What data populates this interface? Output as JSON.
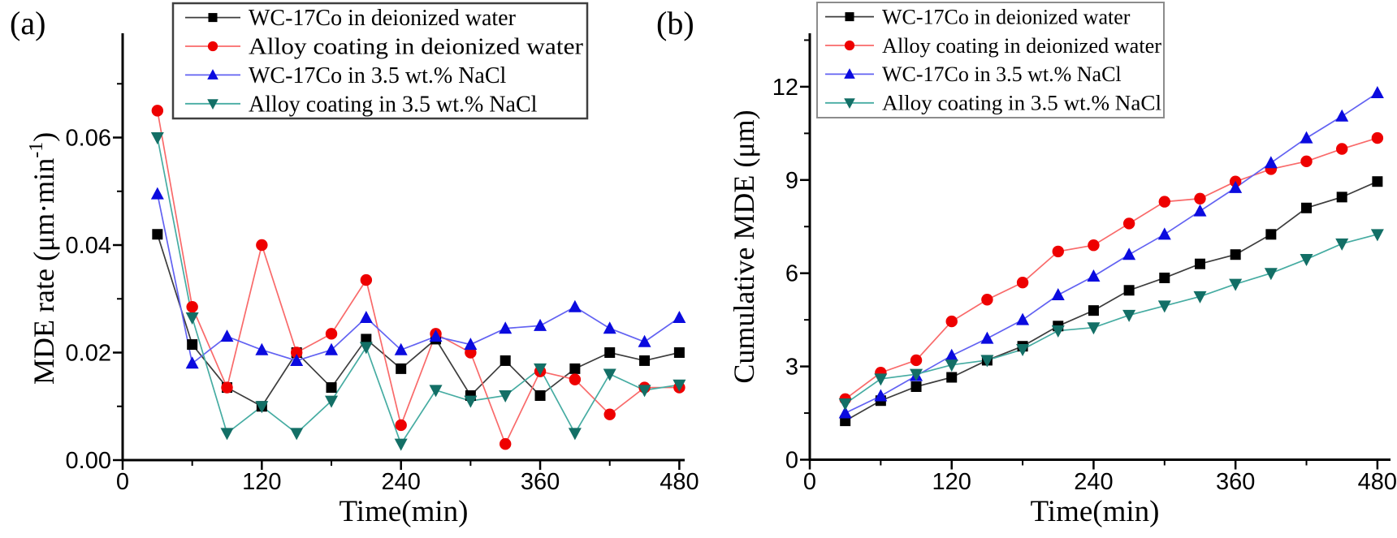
{
  "figure": {
    "background": "#ffffff",
    "axis_color": "#000000",
    "panel_a_label": "(a)",
    "panel_b_label": "(b)",
    "panel_a_xlabel": "Time(min)",
    "panel_b_xlabel": "Time(min)",
    "panel_a_ylabel_parts": {
      "prefix": "MDE rate (μm·min",
      "sup": "-1",
      "suffix": ")"
    },
    "panel_b_ylabel": "Cumulative MDE (μm)"
  },
  "chart_data": [
    {
      "panel": "a",
      "type": "line",
      "title": "",
      "xlabel": "Time(min)",
      "ylabel": "MDE rate (μm·min⁻¹)",
      "grid": false,
      "legend_position": "upper-left-inside",
      "x": [
        30,
        60,
        90,
        120,
        150,
        180,
        210,
        240,
        270,
        300,
        330,
        360,
        390,
        420,
        450,
        480
      ],
      "xlim": [
        0,
        485
      ],
      "ylim": [
        0,
        0.0795
      ],
      "x_major_ticks": [
        0,
        120,
        240,
        360,
        480
      ],
      "x_minor_ticks": [
        60,
        180,
        300,
        420
      ],
      "y_major_ticks": [
        0,
        0.02,
        0.04,
        0.06
      ],
      "y_major_tick_labels": [
        "0.00",
        "0.02",
        "0.04",
        "0.06"
      ],
      "y_minor_ticks": [
        0.01,
        0.03,
        0.05,
        0.07
      ],
      "series": [
        {
          "name": "WC-17Co  in deionized water",
          "marker": "square",
          "marker_color": "#000000",
          "line_color": "#3d3d3d",
          "values": [
            0.042,
            0.0215,
            0.0135,
            0.01,
            0.02,
            0.0135,
            0.0225,
            0.017,
            0.0225,
            0.012,
            0.0185,
            0.012,
            0.017,
            0.02,
            0.0185,
            0.02
          ]
        },
        {
          "name": "Alloy coating in deionized water",
          "marker": "circle",
          "marker_color": "#ee0000",
          "line_color": "#f96a6a",
          "values": [
            0.065,
            0.0285,
            0.0135,
            0.04,
            0.02,
            0.0235,
            0.0335,
            0.0065,
            0.0235,
            0.02,
            0.003,
            0.0165,
            0.015,
            0.0085,
            0.0135,
            0.0135
          ]
        },
        {
          "name": "WC-17Co in 3.5 wt.% NaCl",
          "marker": "triangle-up",
          "marker_color": "#0b0bdf",
          "line_color": "#6262f2",
          "values": [
            0.0495,
            0.018,
            0.023,
            0.0205,
            0.0185,
            0.0205,
            0.0265,
            0.0205,
            0.023,
            0.0215,
            0.0245,
            0.025,
            0.0285,
            0.0245,
            0.022,
            0.0265
          ]
        },
        {
          "name": "Alloy coating in 3.5 wt.% NaCl",
          "marker": "triangle-down",
          "marker_color": "#136f66",
          "line_color": "#46aca2",
          "values": [
            0.06,
            0.0265,
            0.005,
            0.01,
            0.005,
            0.011,
            0.021,
            0.003,
            0.013,
            0.011,
            0.012,
            0.017,
            0.005,
            0.016,
            0.013,
            0.014
          ]
        }
      ]
    },
    {
      "panel": "b",
      "type": "line",
      "title": "",
      "xlabel": "Time(min)",
      "ylabel": "Cumulative MDE (μm)",
      "grid": false,
      "legend_position": "upper-left-inside",
      "x": [
        30,
        60,
        90,
        120,
        150,
        180,
        210,
        240,
        270,
        300,
        330,
        360,
        390,
        420,
        450,
        480
      ],
      "xlim": [
        0,
        490
      ],
      "ylim": [
        0,
        13.7
      ],
      "x_major_ticks": [
        0,
        120,
        240,
        360,
        480
      ],
      "x_minor_ticks": [
        60,
        180,
        300,
        420
      ],
      "y_major_ticks": [
        0,
        3,
        6,
        9,
        12
      ],
      "y_major_tick_labels": [
        "0",
        "3",
        "6",
        "9",
        "12"
      ],
      "y_minor_ticks": [
        1.5,
        4.5,
        7.5,
        10.5,
        13.5
      ],
      "series": [
        {
          "name": "WC-17Co  in deionized water",
          "marker": "square",
          "marker_color": "#000000",
          "line_color": "#3d3d3d",
          "values": [
            1.25,
            1.9,
            2.35,
            2.65,
            3.2,
            3.65,
            4.3,
            4.8,
            5.45,
            5.85,
            6.3,
            6.6,
            7.25,
            8.1,
            8.45,
            8.95
          ]
        },
        {
          "name": "Alloy coating in deionized water",
          "marker": "circle",
          "marker_color": "#ee0000",
          "line_color": "#f96a6a",
          "values": [
            1.95,
            2.8,
            3.2,
            4.45,
            5.15,
            5.7,
            6.7,
            6.9,
            7.6,
            8.3,
            8.4,
            8.95,
            9.35,
            9.6,
            10.0,
            10.35
          ]
        },
        {
          "name": "WC-17Co  in 3.5 wt.% NaCl",
          "marker": "triangle-up",
          "marker_color": "#0b0bdf",
          "line_color": "#6262f2",
          "values": [
            1.5,
            2.05,
            2.7,
            3.35,
            3.9,
            4.5,
            5.3,
            5.9,
            6.6,
            7.25,
            8.0,
            8.75,
            9.55,
            10.35,
            11.05,
            11.8
          ]
        },
        {
          "name": "Alloy coating in 3.5 wt.% NaCl",
          "marker": "triangle-down",
          "marker_color": "#136f66",
          "line_color": "#46aca2",
          "values": [
            1.8,
            2.6,
            2.75,
            3.05,
            3.2,
            3.55,
            4.15,
            4.25,
            4.65,
            4.95,
            5.25,
            5.65,
            6.0,
            6.45,
            6.95,
            7.25
          ]
        }
      ]
    }
  ]
}
